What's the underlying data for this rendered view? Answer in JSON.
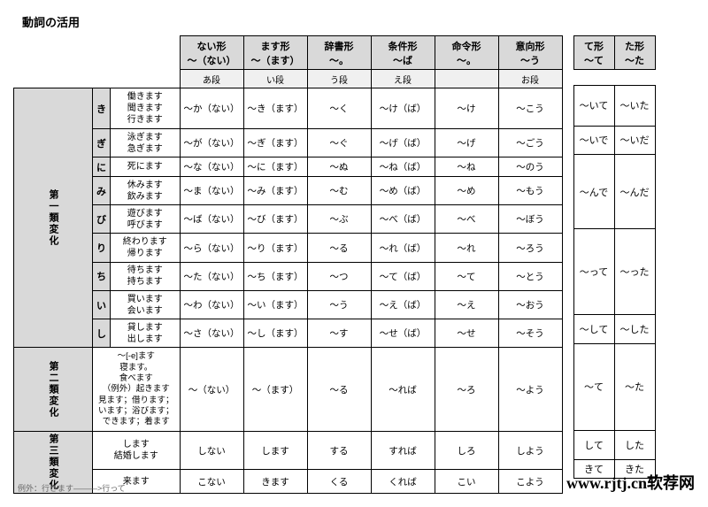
{
  "title": "動詞の活用",
  "headers": {
    "main": [
      {
        "l1": "ない形",
        "l2": "～（ない）"
      },
      {
        "l1": "ます形",
        "l2": "～（ます）"
      },
      {
        "l1": "辞書形",
        "l2": "～。"
      },
      {
        "l1": "条件形",
        "l2": "～ば"
      },
      {
        "l1": "命令形",
        "l2": "～。"
      },
      {
        "l1": "意向形",
        "l2": "～う"
      }
    ],
    "sub": [
      "あ段",
      "い段",
      "う段",
      "え段",
      "",
      "お段"
    ],
    "side": [
      {
        "l1": "て形",
        "l2": "～て"
      },
      {
        "l1": "た形",
        "l2": "～た"
      }
    ]
  },
  "cat1": {
    "label": "第一類変化",
    "rows": [
      {
        "k": "き",
        "ex": [
          "働きます",
          "聞きます",
          "行きます"
        ],
        "c": [
          "～か（ない）",
          "～き（ます）",
          "～く",
          "～け（ば）",
          "～け",
          "～こう"
        ]
      },
      {
        "k": "ぎ",
        "ex": [
          "泳ぎます",
          "急ぎます"
        ],
        "c": [
          "～が（ない）",
          "～ぎ（ます）",
          "～ぐ",
          "～げ（ば）",
          "～げ",
          "～ごう"
        ]
      },
      {
        "k": "に",
        "ex": [
          "死にます"
        ],
        "c": [
          "～な（ない）",
          "～に（ます）",
          "～ぬ",
          "～ね（ば）",
          "～ね",
          "～のう"
        ]
      },
      {
        "k": "み",
        "ex": [
          "休みます",
          "飲みます"
        ],
        "c": [
          "～ま（ない）",
          "～み（ます）",
          "～む",
          "～め（ば）",
          "～め",
          "～もう"
        ]
      },
      {
        "k": "び",
        "ex": [
          "遊びます",
          "呼びます"
        ],
        "c": [
          "～ば（ない）",
          "～び（ます）",
          "～ぶ",
          "～べ（ば）",
          "～べ",
          "～ぼう"
        ]
      },
      {
        "k": "り",
        "ex": [
          "終わります",
          "帰ります"
        ],
        "c": [
          "～ら（ない）",
          "～り（ます）",
          "～る",
          "～れ（ば）",
          "～れ",
          "～ろう"
        ]
      },
      {
        "k": "ち",
        "ex": [
          "待ちます",
          "持ちます"
        ],
        "c": [
          "～た（ない）",
          "～ち（ます）",
          "～つ",
          "～て（ば）",
          "～て",
          "～とう"
        ]
      },
      {
        "k": "い",
        "ex": [
          "買います",
          "会います"
        ],
        "c": [
          "～わ（ない）",
          "～い（ます）",
          "～う",
          "～え（ば）",
          "～え",
          "～おう"
        ]
      },
      {
        "k": "し",
        "ex": [
          "貸します",
          "出します"
        ],
        "c": [
          "～さ（ない）",
          "～し（ます）",
          "～す",
          "～せ（ば）",
          "～せ",
          "～そう"
        ]
      }
    ],
    "side": [
      {
        "te": "～いて",
        "ta": "～いた",
        "span": 1
      },
      {
        "te": "～いで",
        "ta": "～いだ",
        "span": 1
      },
      {
        "te": "～んで",
        "ta": "～んだ",
        "span": 3
      },
      {
        "te": "～って",
        "ta": "～った",
        "span": 3
      },
      {
        "te": "～して",
        "ta": "～した",
        "span": 1
      }
    ]
  },
  "cat2": {
    "label": "第二類変化",
    "ex": [
      "～[-e]ます",
      "寝ます。",
      "食べます",
      "（例外）起きます",
      "見ます；借ります；",
      "います；浴びます；",
      "できます；着ます"
    ],
    "c": [
      "～（ない）",
      "～（ます）",
      "～る",
      "～れば",
      "～ろ",
      "～よう"
    ],
    "side": {
      "te": "～て",
      "ta": "～た"
    }
  },
  "cat3": {
    "label": "第三類変化",
    "rows": [
      {
        "ex": [
          "します",
          "結婚します"
        ],
        "c": [
          "しない",
          "します",
          "する",
          "すれば",
          "しろ",
          "しよう"
        ],
        "te": "して",
        "ta": "した"
      },
      {
        "ex": [
          "来ます"
        ],
        "c": [
          "こない",
          "きます",
          "くる",
          "くれば",
          "こい",
          "こよう"
        ],
        "te": "きて",
        "ta": "きた"
      }
    ]
  },
  "footnote": "例外：行きます―――>行って",
  "watermark": "www.rjtj.cn软荐网"
}
